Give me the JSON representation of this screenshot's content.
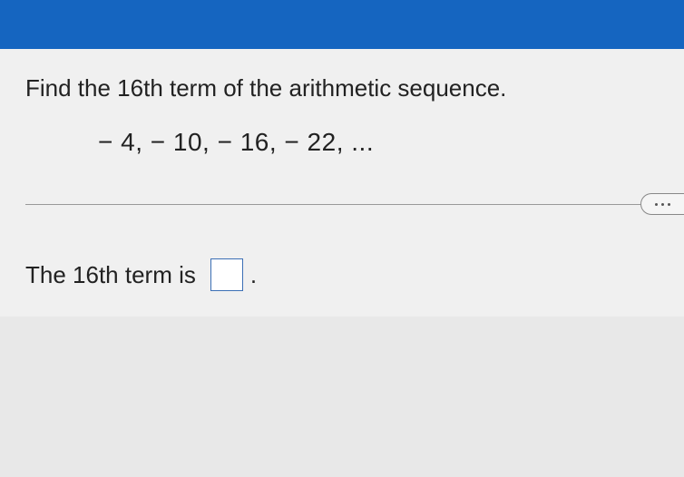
{
  "colors": {
    "header_bg": "#1565c0",
    "body_bg": "#f0f0f0",
    "text": "#222222",
    "divider": "#999999",
    "input_border": "#3b6fb5",
    "button_border": "#888888"
  },
  "question": {
    "prompt": "Find the 16th term of the arithmetic sequence.",
    "sequence": "− 4,  − 10,  − 16,  − 22, ...",
    "prompt_fontsize": 26,
    "sequence_fontsize": 28
  },
  "answer": {
    "prefix": "The 16th term is",
    "value": "",
    "suffix": ".",
    "fontsize": 26
  },
  "more_button": {
    "label": "more-options"
  }
}
